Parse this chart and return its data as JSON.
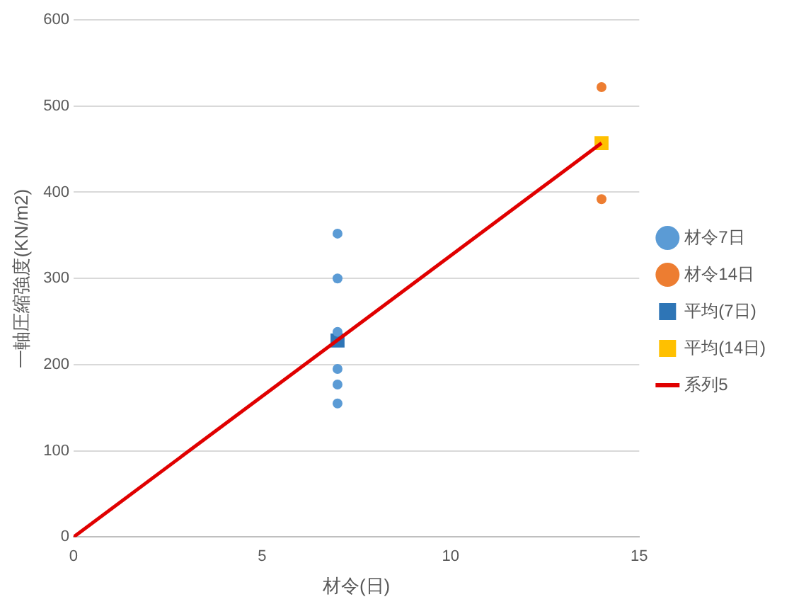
{
  "chart_data": {
    "type": "scatter",
    "xlabel": "材令(日)",
    "ylabel": "一軸圧縮強度(KN/m2)",
    "xlim": [
      0,
      15
    ],
    "xticks": [
      0,
      5,
      10,
      15
    ],
    "ylim": [
      0,
      600
    ],
    "yticks": [
      0,
      100,
      200,
      300,
      400,
      500,
      600
    ],
    "grid": "y",
    "legend": "right",
    "series": [
      {
        "name": "材令7日",
        "color": "#5b9bd5",
        "marker": "circle",
        "x": [
          7,
          7,
          7,
          7,
          7,
          7
        ],
        "values": [
          352,
          300,
          238,
          195,
          177,
          155
        ]
      },
      {
        "name": "材令14日",
        "color": "#ed7d31",
        "marker": "circle",
        "x": [
          14,
          14
        ],
        "values": [
          522,
          392
        ]
      },
      {
        "name": "平均(7日)",
        "color": "#2e75b6",
        "marker": "square",
        "x": [
          7
        ],
        "values": [
          228
        ]
      },
      {
        "name": "平均(14日)",
        "color": "#ffc000",
        "marker": "square",
        "x": [
          14
        ],
        "values": [
          457
        ]
      },
      {
        "name": "系列5",
        "type": "line",
        "color": "#e00000",
        "marker": "none",
        "x": [
          0,
          14
        ],
        "values": [
          0,
          457
        ]
      }
    ]
  }
}
